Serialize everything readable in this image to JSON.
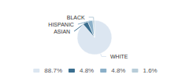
{
  "chart_data": {
    "type": "pie",
    "categories": [
      "WHITE",
      "ASIAN",
      "HISPANIC",
      "BLACK"
    ],
    "values": [
      88.7,
      4.8,
      4.8,
      1.6
    ],
    "value_labels": [
      "88.7%",
      "4.8%",
      "4.8%",
      "1.6%"
    ],
    "colors": [
      "#dce6f1",
      "#3b6e8f",
      "#8aafc8",
      "#b8cdd9"
    ],
    "legend": "bottom"
  }
}
